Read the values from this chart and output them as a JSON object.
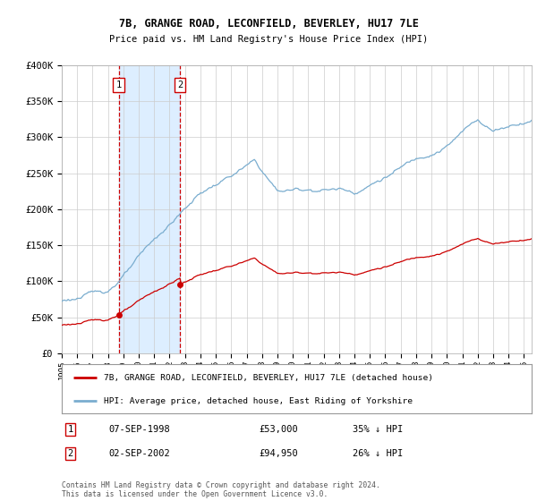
{
  "title1": "7B, GRANGE ROAD, LECONFIELD, BEVERLEY, HU17 7LE",
  "title2": "Price paid vs. HM Land Registry's House Price Index (HPI)",
  "legend_line1": "7B, GRANGE ROAD, LECONFIELD, BEVERLEY, HU17 7LE (detached house)",
  "legend_line2": "HPI: Average price, detached house, East Riding of Yorkshire",
  "footnote": "Contains HM Land Registry data © Crown copyright and database right 2024.\nThis data is licensed under the Open Government Licence v3.0.",
  "transaction1": {
    "label": "1",
    "date": "07-SEP-1998",
    "price": 53000,
    "pct": "35% ↓ HPI",
    "year": 1998.69
  },
  "transaction2": {
    "label": "2",
    "date": "02-SEP-2002",
    "price": 94950,
    "pct": "26% ↓ HPI",
    "year": 2002.67
  },
  "ylim": [
    0,
    400000
  ],
  "xlim": [
    1995.0,
    2025.5
  ],
  "red_color": "#cc0000",
  "blue_color": "#7aadcf",
  "shade_color": "#ddeeff",
  "grid_color": "#cccccc",
  "background_color": "#ffffff"
}
